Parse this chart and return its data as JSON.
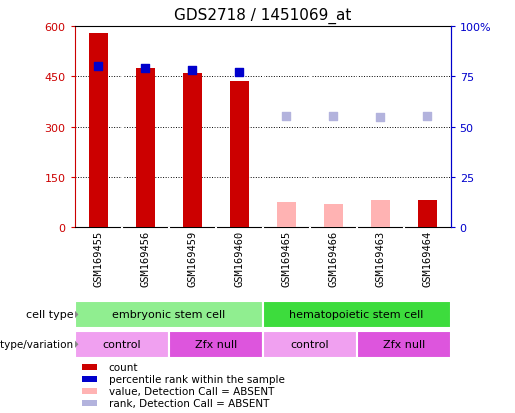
{
  "title": "GDS2718 / 1451069_at",
  "samples": [
    "GSM169455",
    "GSM169456",
    "GSM169459",
    "GSM169460",
    "GSM169465",
    "GSM169466",
    "GSM169463",
    "GSM169464"
  ],
  "count_values": [
    580,
    475,
    460,
    435,
    null,
    null,
    null,
    80
  ],
  "absent_value_values": [
    null,
    null,
    null,
    null,
    75,
    70,
    80,
    null
  ],
  "rank_present_values": [
    480,
    475,
    468,
    462,
    null,
    null,
    null,
    null
  ],
  "rank_absent_values": [
    null,
    null,
    null,
    null,
    330,
    330,
    328,
    330
  ],
  "ylim_left": [
    0,
    600
  ],
  "ylim_right": [
    0,
    100
  ],
  "yticks_left": [
    0,
    150,
    300,
    450,
    600
  ],
  "yticks_right": [
    0,
    25,
    50,
    75,
    100
  ],
  "ytick_labels_left": [
    "0",
    "150",
    "300",
    "450",
    "600"
  ],
  "ytick_labels_right": [
    "0",
    "25",
    "50",
    "75",
    "100%"
  ],
  "cell_type_groups": [
    {
      "label": "embryonic stem cell",
      "start": 0,
      "end": 4,
      "color": "#90ee90"
    },
    {
      "label": "hematopoietic stem cell",
      "start": 4,
      "end": 8,
      "color": "#3ddc3d"
    }
  ],
  "genotype_groups": [
    {
      "label": "control",
      "start": 0,
      "end": 2,
      "color": "#f0a0f0"
    },
    {
      "label": "Zfx null",
      "start": 2,
      "end": 4,
      "color": "#dd55dd"
    },
    {
      "label": "control",
      "start": 4,
      "end": 6,
      "color": "#f0a0f0"
    },
    {
      "label": "Zfx null",
      "start": 6,
      "end": 8,
      "color": "#dd55dd"
    }
  ],
  "legend_items": [
    {
      "label": "count",
      "color": "#cc0000"
    },
    {
      "label": "percentile rank within the sample",
      "color": "#0000cc"
    },
    {
      "label": "value, Detection Call = ABSENT",
      "color": "#ffb3b3"
    },
    {
      "label": "rank, Detection Call = ABSENT",
      "color": "#b3b3dd"
    }
  ],
  "bar_width": 0.4,
  "bg_color": "#cccccc",
  "title_fontsize": 11,
  "red_color": "#cc0000",
  "blue_color": "#0000cc",
  "pink_color": "#ffb3b3",
  "lblue_color": "#b3b3dd"
}
